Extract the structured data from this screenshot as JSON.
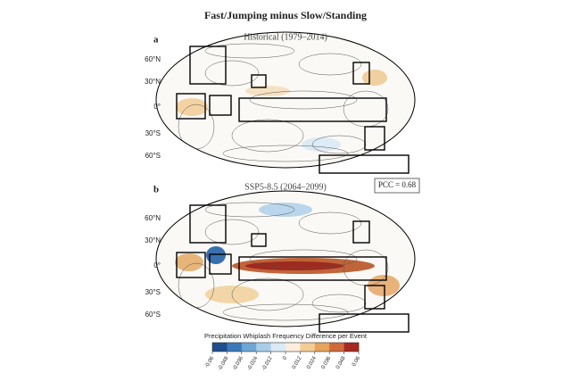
{
  "title": "Fast/Jumping minus Slow/Standing",
  "panels": [
    {
      "label": "a",
      "subtitle": "Historical (1979–2014)",
      "lat_labels": [
        "60°N",
        "30°N",
        "0°",
        "30°S",
        "60°S"
      ]
    },
    {
      "label": "b",
      "subtitle": "SSP5-8.5 (2064–2099)",
      "lat_labels": [
        "60°N",
        "30°N",
        "0°",
        "30°S",
        "60°S"
      ]
    }
  ],
  "pcc": "PCC = 0.68",
  "colorbar": {
    "title": "Precipitation Whiplash Frequency Difference per Event",
    "ticks": [
      -0.06,
      -0.048,
      -0.036,
      -0.024,
      -0.012,
      0,
      0.012,
      0.024,
      0.036,
      0.048,
      0.06
    ],
    "colors": [
      "#1f4e8c",
      "#3a78b8",
      "#6ea6d4",
      "#a8cde8",
      "#dbeaf5",
      "#fbeedd",
      "#f4cc95",
      "#e6a35a",
      "#cf6a3a",
      "#a7281f"
    ]
  }
}
